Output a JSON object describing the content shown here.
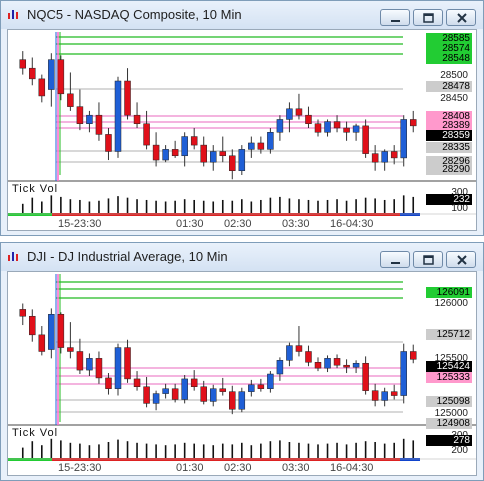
{
  "colors": {
    "green_tag": "#22cc33",
    "pink_tag": "#ff99cc",
    "black_tag": "#000000",
    "gray_tag": "#cccccc",
    "up_candle": "#1f5fd6",
    "down_candle": "#e0101a"
  },
  "windows": [
    {
      "title": "NQC5 - NASDAQ Composite, 10 Min",
      "icon": "chart-window-icon",
      "buttons": [
        "minimize-icon",
        "restore-icon",
        "close-icon"
      ],
      "price_axis": [
        "28500",
        "28450",
        "28290"
      ],
      "price_tags": [
        {
          "text": "28585",
          "style": "green"
        },
        {
          "text": "28574",
          "style": "green"
        },
        {
          "text": "28548",
          "style": "green"
        },
        {
          "text": "28478",
          "style": "gray"
        },
        {
          "text": "28408",
          "style": "pink"
        },
        {
          "text": "28389",
          "style": "pink"
        },
        {
          "text": "28359",
          "style": "black"
        },
        {
          "text": "28335",
          "style": "gray"
        },
        {
          "text": "28296",
          "style": "gray"
        },
        {
          "text": "28290",
          "style": "gray"
        }
      ],
      "time_labels": [
        "15-23:30",
        "01:30",
        "02:30",
        "03:30",
        "16-04:30"
      ],
      "vol_label": "Tick Vol",
      "vol_axis": [
        "300",
        "232",
        "100"
      ],
      "chart_data": {
        "type": "candlestick",
        "ylim": [
          28270,
          28600
        ],
        "candles": [
          [
            28540,
            28560,
            28505,
            28520
          ],
          [
            28520,
            28545,
            28480,
            28495
          ],
          [
            28495,
            28505,
            28440,
            28455
          ],
          [
            28470,
            28555,
            28430,
            28540
          ],
          [
            28540,
            28550,
            28445,
            28460
          ],
          [
            28460,
            28510,
            28420,
            28430
          ],
          [
            28430,
            28470,
            28375,
            28390
          ],
          [
            28390,
            28420,
            28370,
            28410
          ],
          [
            28410,
            28440,
            28350,
            28365
          ],
          [
            28365,
            28380,
            28305,
            28325
          ],
          [
            28325,
            28500,
            28310,
            28490
          ],
          [
            28490,
            28520,
            28400,
            28410
          ],
          [
            28410,
            28440,
            28380,
            28390
          ],
          [
            28390,
            28420,
            28330,
            28340
          ],
          [
            28340,
            28370,
            28290,
            28305
          ],
          [
            28305,
            28340,
            28300,
            28330
          ],
          [
            28330,
            28350,
            28310,
            28315
          ],
          [
            28315,
            28370,
            28290,
            28360
          ],
          [
            28360,
            28380,
            28330,
            28340
          ],
          [
            28340,
            28360,
            28290,
            28300
          ],
          [
            28300,
            28340,
            28280,
            28325
          ],
          [
            28325,
            28360,
            28300,
            28315
          ],
          [
            28315,
            28330,
            28260,
            28280
          ],
          [
            28280,
            28340,
            28270,
            28330
          ],
          [
            28330,
            28360,
            28310,
            28345
          ],
          [
            28345,
            28360,
            28320,
            28330
          ],
          [
            28330,
            28380,
            28320,
            28370
          ],
          [
            28370,
            28410,
            28350,
            28400
          ],
          [
            28400,
            28440,
            28370,
            28425
          ],
          [
            28425,
            28460,
            28400,
            28410
          ],
          [
            28410,
            28430,
            28380,
            28390
          ],
          [
            28390,
            28400,
            28360,
            28370
          ],
          [
            28370,
            28400,
            28360,
            28395
          ],
          [
            28395,
            28410,
            28370,
            28380
          ],
          [
            28380,
            28395,
            28350,
            28370
          ],
          [
            28370,
            28390,
            28350,
            28385
          ],
          [
            28385,
            28400,
            28310,
            28320
          ],
          [
            28320,
            28340,
            28280,
            28300
          ],
          [
            28300,
            28330,
            28280,
            28325
          ],
          [
            28325,
            28340,
            28295,
            28310
          ],
          [
            28310,
            28410,
            28290,
            28400
          ],
          [
            28400,
            28420,
            28370,
            28385
          ]
        ],
        "volumes": [
          120,
          200,
          150,
          230,
          210,
          180,
          170,
          150,
          160,
          190,
          220,
          200,
          180,
          170,
          160,
          150,
          160,
          180,
          170,
          160,
          150,
          170,
          160,
          180,
          150,
          170,
          200,
          210,
          190,
          180,
          170,
          160,
          170,
          180,
          160,
          180,
          200,
          190,
          170,
          180,
          230,
          210
        ]
      }
    },
    {
      "title": "DJI - DJ Industrial Average, 10 Min",
      "icon": "chart-window-icon",
      "buttons": [
        "minimize-icon",
        "restore-icon",
        "close-icon"
      ],
      "price_axis": [
        "126000",
        "125500",
        "125000"
      ],
      "price_tags": [
        {
          "text": "126091",
          "style": "green"
        },
        {
          "text": "125712",
          "style": "gray"
        },
        {
          "text": "125424",
          "style": "black"
        },
        {
          "text": "125333",
          "style": "pink"
        },
        {
          "text": "125098",
          "style": "gray"
        },
        {
          "text": "124908",
          "style": "gray"
        }
      ],
      "time_labels": [
        "15-23:30",
        "01:30",
        "02:30",
        "03:30",
        "16-04:30"
      ],
      "vol_label": "Tick Vol",
      "vol_axis": [
        "300",
        "278",
        "200"
      ],
      "chart_data": {
        "type": "candlestick",
        "ylim": [
          124800,
          126250
        ],
        "candles": [
          [
            125950,
            126010,
            125790,
            125880
          ],
          [
            125880,
            125950,
            125620,
            125690
          ],
          [
            125690,
            125780,
            125480,
            125520
          ],
          [
            125540,
            125960,
            125450,
            125900
          ],
          [
            125900,
            125920,
            125500,
            125560
          ],
          [
            125560,
            125820,
            125450,
            125520
          ],
          [
            125520,
            125650,
            125290,
            125330
          ],
          [
            125330,
            125500,
            125270,
            125450
          ],
          [
            125450,
            125520,
            125190,
            125250
          ],
          [
            125250,
            125300,
            125080,
            125140
          ],
          [
            125140,
            125600,
            125070,
            125560
          ],
          [
            125560,
            125640,
            125200,
            125240
          ],
          [
            125240,
            125320,
            125120,
            125160
          ],
          [
            125160,
            125260,
            124950,
            124990
          ],
          [
            124990,
            125120,
            124920,
            125090
          ],
          [
            125090,
            125190,
            125040,
            125140
          ],
          [
            125140,
            125190,
            125000,
            125030
          ],
          [
            125030,
            125280,
            124990,
            125240
          ],
          [
            125240,
            125330,
            125120,
            125160
          ],
          [
            125160,
            125220,
            124980,
            125010
          ],
          [
            125010,
            125180,
            124960,
            125140
          ],
          [
            125140,
            125250,
            125070,
            125110
          ],
          [
            125110,
            125170,
            124880,
            124930
          ],
          [
            124930,
            125150,
            124900,
            125110
          ],
          [
            125110,
            125230,
            125060,
            125180
          ],
          [
            125180,
            125240,
            125110,
            125140
          ],
          [
            125140,
            125320,
            125100,
            125290
          ],
          [
            125290,
            125460,
            125220,
            125430
          ],
          [
            125430,
            125610,
            125370,
            125580
          ],
          [
            125580,
            125780,
            125470,
            125520
          ],
          [
            125520,
            125580,
            125370,
            125410
          ],
          [
            125410,
            125460,
            125320,
            125350
          ],
          [
            125350,
            125480,
            125310,
            125450
          ],
          [
            125450,
            125490,
            125350,
            125380
          ],
          [
            125380,
            125440,
            125300,
            125360
          ],
          [
            125360,
            125430,
            125300,
            125400
          ],
          [
            125400,
            125470,
            125080,
            125120
          ],
          [
            125120,
            125190,
            124960,
            125020
          ],
          [
            125020,
            125150,
            124960,
            125110
          ],
          [
            125110,
            125180,
            125030,
            125070
          ],
          [
            125070,
            125600,
            124990,
            125520
          ],
          [
            125520,
            125590,
            125400,
            125440
          ]
        ],
        "volumes": [
          130,
          210,
          160,
          240,
          220,
          190,
          180,
          160,
          170,
          200,
          230,
          210,
          190,
          180,
          170,
          160,
          170,
          190,
          180,
          170,
          160,
          180,
          170,
          190,
          160,
          180,
          210,
          220,
          200,
          190,
          180,
          170,
          180,
          190,
          170,
          190,
          210,
          200,
          180,
          190,
          240,
          220
        ]
      }
    }
  ]
}
